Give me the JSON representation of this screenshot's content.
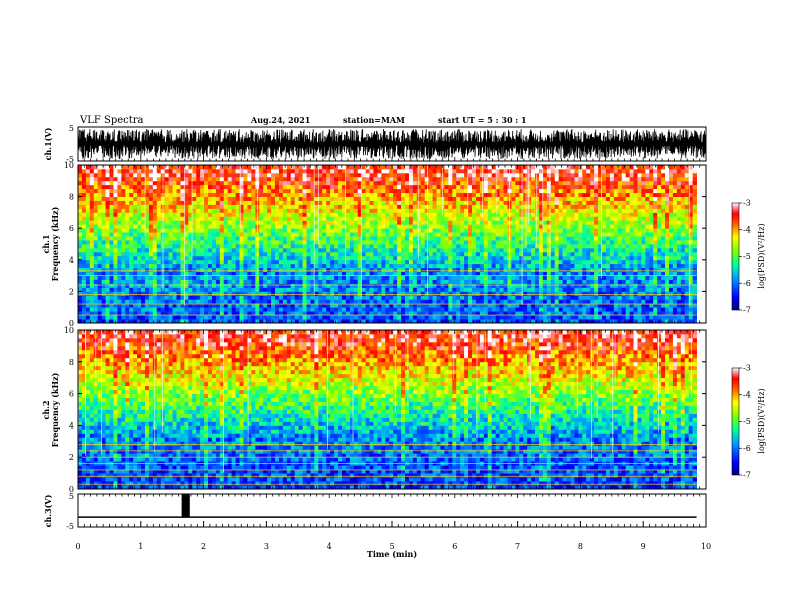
{
  "header": {
    "title": "VLF Spectra",
    "date": "Aug.24, 2021",
    "station": "station=MAM",
    "start": "start UT =  5 : 30 : 1"
  },
  "colors": {
    "colormap": [
      "#000080",
      "#0000ff",
      "#0080ff",
      "#00e0ff",
      "#00ff80",
      "#80ff00",
      "#ffff00",
      "#ff8000",
      "#ff0000",
      "#ffffff"
    ],
    "trace": "#000000"
  },
  "chart_data": [
    {
      "type": "line",
      "name": "ch1-waveform",
      "ylabel": "ch.1(V)",
      "ylim": [
        -5,
        5
      ],
      "yticks": [
        "5",
        "-5"
      ],
      "xlim": [
        0,
        10
      ],
      "description_values": {
        "amplitude_range": [
          -5,
          5
        ]
      }
    },
    {
      "type": "heatmap",
      "name": "ch1-spectrogram",
      "ylabel": "ch.1 Frequency (kHz)",
      "ylabel_ch": "ch.1",
      "ylabel_freq": "Frequency (kHz)",
      "ylim": [
        0,
        10
      ],
      "yticks": [
        "0",
        "2",
        "4",
        "6",
        "8",
        "10"
      ],
      "xlim": [
        0,
        9.85
      ],
      "colorbar": {
        "label": "log(PSD)(V²/Hz)",
        "range": [
          -7,
          -3
        ],
        "ticks": [
          "-3",
          "-4",
          "-5",
          "-6",
          "-7"
        ]
      },
      "horizontal_lines_khz": [
        0.5,
        1.2,
        1.8,
        2.4,
        3.0,
        3.3
      ]
    },
    {
      "type": "heatmap",
      "name": "ch2-spectrogram",
      "ylabel": "ch.2 Frequency (kHz)",
      "ylabel_ch": "ch.2",
      "ylabel_freq": "Frequency (kHz)",
      "ylim": [
        0,
        10
      ],
      "yticks": [
        "0",
        "2",
        "4",
        "6",
        "8",
        "10"
      ],
      "xlim": [
        0,
        9.85
      ],
      "colorbar": {
        "label": "log(PSD)(V²/Hz)",
        "range": [
          -7,
          -3
        ],
        "ticks": [
          "-3",
          "-4",
          "-5",
          "-6",
          "-7"
        ]
      },
      "horizontal_lines_khz": [
        0.3,
        0.8,
        1.2,
        1.6,
        2.0,
        2.4,
        2.8
      ]
    },
    {
      "type": "line",
      "name": "ch3-signal",
      "ylabel": "ch.3(V)",
      "ylim": [
        -5,
        5
      ],
      "yticks": [
        "5",
        "-5"
      ],
      "xlim": [
        0,
        10
      ],
      "xticks": [
        "0",
        "1",
        "2",
        "3",
        "4",
        "5",
        "6",
        "7",
        "8",
        "9",
        "10"
      ],
      "xlabel": "Time (min)",
      "baseline_v": -2,
      "pulse": {
        "start_min": 1.65,
        "end_min": 1.78,
        "high_v": 5
      },
      "end_min": 9.85
    }
  ]
}
